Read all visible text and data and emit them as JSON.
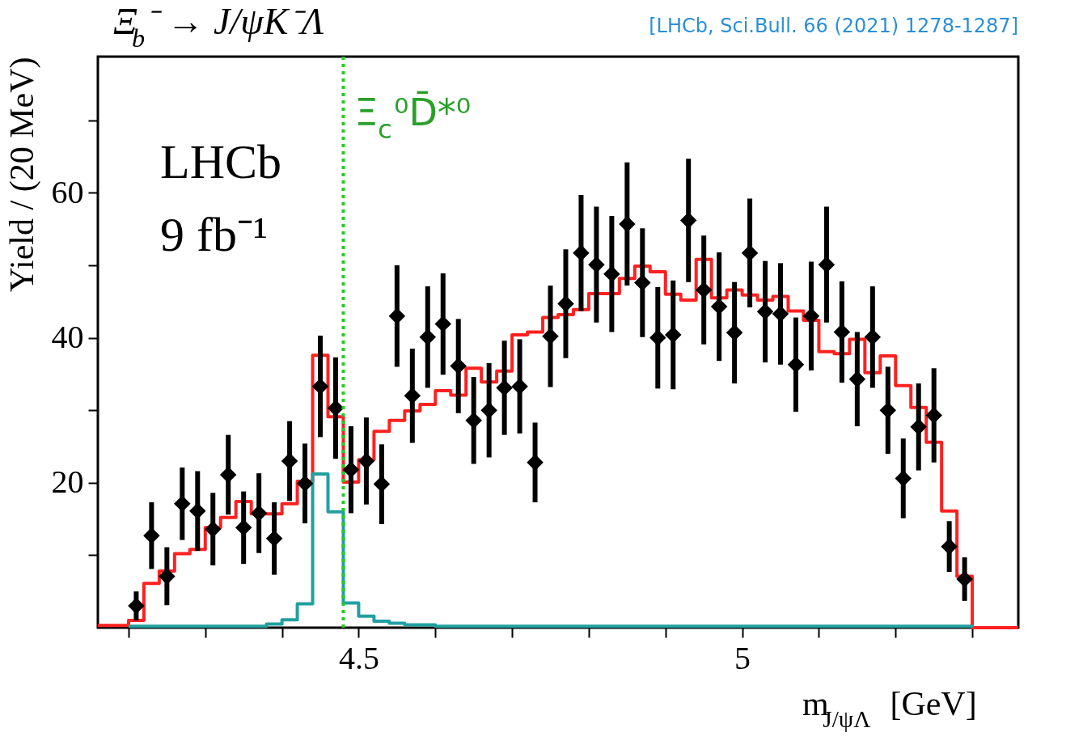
{
  "chart_data": {
    "type": "scatter",
    "title": "Ξ$_{b}$⁻ → J/ψK⁻Λ",
    "xlabel": "m$_{J/ψΛ}$ [GeV]",
    "ylabel": "Yield / (20 MeV)",
    "annotations": [
      "LHCb",
      "9 fb⁻¹",
      "[LHCb, Sci.Bull. 66 (2021) 1278-1287]"
    ],
    "x": [
      4.21,
      4.23,
      4.25,
      4.27,
      4.29,
      4.31,
      4.33,
      4.35,
      4.37,
      4.39,
      4.41,
      4.43,
      4.45,
      4.47,
      4.49,
      4.51,
      4.53,
      4.55,
      4.57,
      4.59,
      4.61,
      4.63,
      4.65,
      4.67,
      4.69,
      4.71,
      4.73,
      4.75,
      4.77,
      4.79,
      4.81,
      4.83,
      4.85,
      4.87,
      4.89,
      4.91,
      4.93,
      4.95,
      4.97,
      4.99,
      5.01,
      5.03,
      5.05,
      5.07,
      5.09,
      5.11,
      5.13,
      5.15,
      5.17,
      5.19,
      5.21,
      5.23,
      5.25,
      5.27,
      5.29
    ],
    "series": [
      {
        "color": "#000000",
        "marker": "diamond",
        "values": [
          3.0,
          12.7,
          7.1,
          17.1,
          16.1,
          13.6,
          21.1,
          13.8,
          15.8,
          12.3,
          23.0,
          19.9,
          33.3,
          30.3,
          21.8,
          23.0,
          19.8,
          43.0,
          32.0,
          40.1,
          41.9,
          36.1,
          28.6,
          30.0,
          33.1,
          33.3,
          22.8,
          40.2,
          44.7,
          51.7,
          50.1,
          48.8,
          55.7,
          47.6,
          40.0,
          40.4,
          56.2,
          46.6,
          44.3,
          40.7,
          51.7,
          43.6,
          43.3,
          36.3,
          43.0,
          50.1,
          40.8,
          34.3,
          40.1,
          30.0,
          20.6,
          27.7,
          29.3,
          11.2,
          6.7
        ],
        "errors": [
          2,
          4.6,
          4,
          5,
          5.5,
          5,
          5.5,
          5,
          5.5,
          5,
          5.5,
          5.5,
          7,
          7,
          6,
          6,
          5.5,
          7,
          6.5,
          7,
          7,
          6.5,
          6,
          6.5,
          6.5,
          6.5,
          5.5,
          7,
          7.5,
          8,
          8,
          8,
          8.5,
          7.5,
          7,
          7.5,
          8.5,
          7.5,
          7.5,
          7,
          7.5,
          7,
          7,
          6.5,
          7.5,
          8,
          7,
          6.5,
          7,
          6,
          5.5,
          6,
          6.5,
          3.5,
          3
        ]
      },
      {
        "type": "step",
        "color": "#ff2020",
        "x": [
          4.16,
          4.2,
          4.22,
          4.24,
          4.26,
          4.28,
          4.3,
          4.32,
          4.34,
          4.36,
          4.38,
          4.4,
          4.42,
          4.44,
          4.46,
          4.48,
          4.5,
          4.52,
          4.54,
          4.56,
          4.58,
          4.6,
          4.62,
          4.64,
          4.66,
          4.68,
          4.7,
          4.72,
          4.74,
          4.76,
          4.78,
          4.8,
          4.82,
          4.84,
          4.86,
          4.88,
          4.9,
          4.92,
          4.94,
          4.96,
          4.98,
          5.0,
          5.02,
          5.04,
          5.06,
          5.08,
          5.1,
          5.12,
          5.14,
          5.16,
          5.18,
          5.2,
          5.22,
          5.24,
          5.26,
          5.28,
          5.3,
          5.36
        ],
        "values": [
          0.3,
          1.0,
          6.1,
          7.8,
          10.2,
          10.8,
          13.8,
          15.2,
          17.4,
          15.7,
          15.7,
          17.1,
          20.2,
          37.6,
          29.1,
          20.1,
          23.2,
          27.1,
          28.6,
          29.9,
          30.8,
          32.7,
          32.1,
          35.8,
          33.9,
          35.4,
          40.4,
          40.8,
          42.8,
          43.2,
          43.9,
          46.1,
          46.1,
          48.2,
          49.9,
          49.1,
          46.0,
          45.2,
          50.8,
          45.5,
          46.6,
          45.9,
          45.2,
          45.7,
          43.7,
          42.4,
          38.1,
          37.8,
          39.8,
          35.2,
          37.5,
          33.4,
          30.4,
          25.6,
          16.1,
          7.1,
          0,
          0
        ]
      },
      {
        "type": "step",
        "color": "#22a0a0",
        "x": [
          4.2,
          4.22,
          4.24,
          4.26,
          4.28,
          4.3,
          4.32,
          4.34,
          4.36,
          4.38,
          4.4,
          4.42,
          4.44,
          4.46,
          4.48,
          4.5,
          4.52,
          4.54,
          4.56,
          4.58,
          4.6,
          4.62,
          4.64,
          4.66,
          4.68,
          4.7,
          4.72,
          4.74,
          4.76,
          4.78,
          4.8,
          4.82,
          4.84,
          4.86,
          4.88,
          4.9,
          4.92,
          4.94,
          4.96,
          4.98,
          5.0,
          5.02,
          5.04,
          5.06,
          5.08,
          5.1,
          5.12,
          5.14,
          5.16,
          5.18,
          5.2,
          5.22,
          5.24,
          5.26,
          5.28,
          5.3
        ],
        "values": [
          0.2,
          0.2,
          0.2,
          0.2,
          0.2,
          0.2,
          0.2,
          0.2,
          0.2,
          0.5,
          1.1,
          3.3,
          21.2,
          16.0,
          3.4,
          1.6,
          0.9,
          0.6,
          0.4,
          0.4,
          0.2,
          0.2,
          0.2,
          0.2,
          0.2,
          0.2,
          0.2,
          0.2,
          0.2,
          0.2,
          0.2,
          0.2,
          0.2,
          0.2,
          0.2,
          0.2,
          0.2,
          0.2,
          0.2,
          0.2,
          0.2,
          0.2,
          0.2,
          0.2,
          0.2,
          0.2,
          0.2,
          0.2,
          0.2,
          0.2,
          0.2,
          0.2,
          0.2,
          0.2,
          0.2,
          0
        ]
      }
    ],
    "ref_lines": [
      {
        "axis": "x",
        "value": 4.48,
        "label": "Ξ$_{c}$⁰D̄*⁰",
        "color": "#22cc22",
        "line_style": "dotted"
      }
    ],
    "xlim": [
      4.16,
      5.36
    ],
    "xticks": [
      {
        "value": 4.2,
        "label": null
      },
      {
        "value": 4.3,
        "label": null
      },
      {
        "value": 4.4,
        "label": null
      },
      4.5,
      {
        "value": 4.6,
        "label": null
      },
      {
        "value": 4.7,
        "label": null
      },
      {
        "value": 4.8,
        "label": null
      },
      {
        "value": 4.9,
        "label": null
      },
      5,
      {
        "value": 5.1,
        "label": null
      },
      {
        "value": 5.2,
        "label": null
      },
      {
        "value": 5.3,
        "label": null
      }
    ],
    "ylim": [
      0,
      78.8
    ],
    "yticks": [
      {
        "value": 10,
        "label": null
      },
      20,
      {
        "value": 30,
        "label": null
      },
      40,
      {
        "value": 50,
        "label": null
      },
      60,
      {
        "value": 70,
        "label": null
      }
    ],
    "grid": false
  }
}
